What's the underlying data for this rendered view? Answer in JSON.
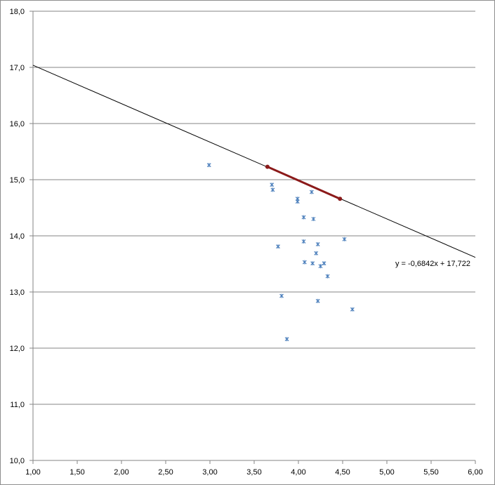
{
  "chart_data": {
    "type": "scatter",
    "title": "",
    "xlabel": "",
    "ylabel": "",
    "xlim": [
      1.0,
      6.0
    ],
    "ylim": [
      10.0,
      18.0
    ],
    "x_ticks": [
      1.0,
      1.5,
      2.0,
      2.5,
      3.0,
      3.5,
      4.0,
      4.5,
      5.0,
      5.5,
      6.0
    ],
    "y_ticks": [
      10.0,
      11.0,
      12.0,
      13.0,
      14.0,
      15.0,
      16.0,
      17.0,
      18.0
    ],
    "x_tick_labels": [
      "1,00",
      "1,50",
      "2,00",
      "2,50",
      "3,00",
      "3,50",
      "4,00",
      "4,50",
      "5,00",
      "5,50",
      "6,00"
    ],
    "y_tick_labels": [
      "10,0",
      "11,0",
      "12,0",
      "13,0",
      "14,0",
      "15,0",
      "16,0",
      "17,0",
      "18,0"
    ],
    "grid": "horizontal",
    "series": [
      {
        "marker": "x",
        "color": "#4a7ebb",
        "points": [
          [
            2.99,
            15.26
          ],
          [
            3.7,
            14.91
          ],
          [
            3.71,
            14.82
          ],
          [
            3.99,
            14.66
          ],
          [
            3.99,
            14.61
          ],
          [
            4.15,
            14.78
          ],
          [
            4.06,
            14.33
          ],
          [
            4.17,
            14.3
          ],
          [
            4.52,
            13.94
          ],
          [
            4.06,
            13.9
          ],
          [
            4.22,
            13.85
          ],
          [
            3.77,
            13.81
          ],
          [
            4.2,
            13.69
          ],
          [
            4.07,
            13.53
          ],
          [
            4.16,
            13.51
          ],
          [
            4.29,
            13.51
          ],
          [
            4.25,
            13.46
          ],
          [
            4.33,
            13.28
          ],
          [
            3.81,
            12.93
          ],
          [
            4.22,
            12.84
          ],
          [
            4.61,
            12.69
          ],
          [
            3.87,
            12.16
          ]
        ]
      },
      {
        "marker": "o",
        "color": "#8b1a1a",
        "points": [
          [
            3.65,
            15.23
          ],
          [
            4.47,
            14.66
          ]
        ]
      }
    ],
    "trendline": {
      "slope": -0.6842,
      "intercept": 17.722,
      "color": "#000000",
      "equation_label": "y = -0,6842x + 17,722"
    }
  }
}
